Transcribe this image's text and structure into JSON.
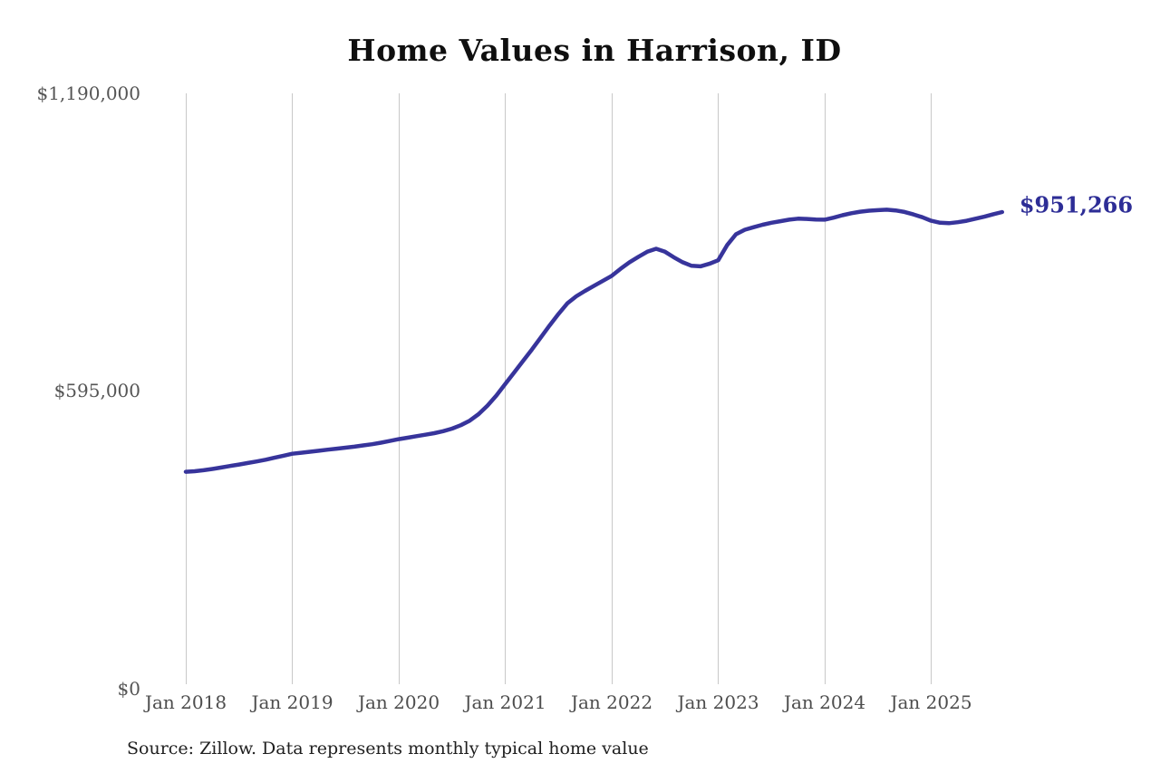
{
  "page": {
    "title": "Home Values in Harrison, ID",
    "source_note": "Source: Zillow. Data represents monthly typical home value"
  },
  "colors": {
    "line": "#37349b",
    "end_label": "#2d2d96",
    "gridline": "#c8c8c8",
    "y_tick_text": "#555555",
    "x_tick_text": "#4d4d4d",
    "title_text": "#0f0f0f",
    "source_text": "#1f1f1f"
  },
  "chart_data": {
    "type": "line",
    "title": "Home Values in Harrison, ID",
    "xlabel": "",
    "ylabel": "",
    "x_start": "Jan 2018",
    "x_end": "Sep 2025",
    "x_frequency": "monthly",
    "x_tick_labels": [
      "Jan 2018",
      "Jan 2019",
      "Jan 2020",
      "Jan 2021",
      "Jan 2022",
      "Jan 2023",
      "Jan 2024",
      "Jan 2025"
    ],
    "y_tick_labels": [
      "$0",
      "$595,000",
      "$1,190,000"
    ],
    "y_ticks": [
      0,
      595000,
      1190000
    ],
    "ylim": [
      0,
      1190000
    ],
    "grid": "vertical-yearly-only",
    "legend": "none",
    "end_label": "$951,266",
    "end_value": 951266,
    "series": [
      {
        "name": "Typical home value",
        "color": "#37349b",
        "values": [
          433000,
          434000,
          436000,
          438500,
          441500,
          444500,
          447500,
          450500,
          453500,
          457000,
          461000,
          465000,
          469000,
          471000,
          473000,
          475000,
          477000,
          479000,
          481000,
          483000,
          485500,
          488000,
          491000,
          494500,
          498000,
          501000,
          504000,
          507000,
          510000,
          514000,
          519000,
          526000,
          535000,
          548000,
          565000,
          585000,
          608000,
          631000,
          654000,
          677000,
          701000,
          725000,
          748000,
          769000,
          783000,
          794000,
          804000,
          814000,
          824000,
          838000,
          851000,
          862000,
          872000,
          878000,
          872000,
          861000,
          851000,
          844000,
          843000,
          848000,
          855000,
          885000,
          907000,
          916000,
          921000,
          926000,
          930000,
          933000,
          936000,
          938000,
          937500,
          936500,
          936000,
          940000,
          945000,
          949000,
          952000,
          954000,
          955000,
          956000,
          954500,
          951500,
          946500,
          941000,
          934000,
          930000,
          929000,
          931000,
          934000,
          938000,
          942000,
          947000,
          951266
        ]
      }
    ],
    "source_note": "Source: Zillow. Data represents monthly typical home value"
  }
}
